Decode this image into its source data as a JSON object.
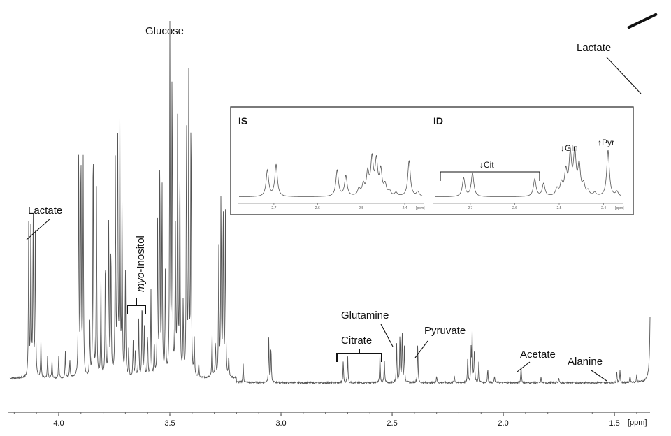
{
  "chart_data": {
    "type": "line",
    "x_unit": "[ppm]",
    "xlim": [
      4.22,
      1.34
    ],
    "x_reversed": true,
    "x_ticks": [
      4.0,
      3.5,
      3.0,
      2.5,
      2.0,
      1.5
    ],
    "x_tick_labels": [
      "4.0",
      "3.5",
      "3.0",
      "2.5",
      "2.0",
      "1.5"
    ],
    "ylim": [
      0,
      100
    ],
    "baseline": 2,
    "peaks": [
      {
        "x": 4.135,
        "h": 42
      },
      {
        "x": 4.125,
        "h": 47
      },
      {
        "x": 4.115,
        "h": 45
      },
      {
        "x": 4.105,
        "h": 40
      },
      {
        "x": 4.08,
        "h": 10
      },
      {
        "x": 4.05,
        "h": 6
      },
      {
        "x": 4.03,
        "h": 5
      },
      {
        "x": 4.0,
        "h": 6
      },
      {
        "x": 3.97,
        "h": 7
      },
      {
        "x": 3.95,
        "h": 5
      },
      {
        "x": 3.91,
        "h": 62
      },
      {
        "x": 3.9,
        "h": 66
      },
      {
        "x": 3.89,
        "h": 60
      },
      {
        "x": 3.86,
        "h": 15
      },
      {
        "x": 3.845,
        "h": 70
      },
      {
        "x": 3.83,
        "h": 52
      },
      {
        "x": 3.81,
        "h": 28
      },
      {
        "x": 3.79,
        "h": 35
      },
      {
        "x": 3.775,
        "h": 42
      },
      {
        "x": 3.765,
        "h": 38
      },
      {
        "x": 3.745,
        "h": 60
      },
      {
        "x": 3.735,
        "h": 78
      },
      {
        "x": 3.725,
        "h": 72
      },
      {
        "x": 3.715,
        "h": 50
      },
      {
        "x": 3.7,
        "h": 30
      },
      {
        "x": 3.685,
        "h": 8
      },
      {
        "x": 3.665,
        "h": 10
      },
      {
        "x": 3.655,
        "h": 8
      },
      {
        "x": 3.64,
        "h": 16
      },
      {
        "x": 3.625,
        "h": 22
      },
      {
        "x": 3.615,
        "h": 14
      },
      {
        "x": 3.6,
        "h": 12
      },
      {
        "x": 3.585,
        "h": 24
      },
      {
        "x": 3.57,
        "h": 10
      },
      {
        "x": 3.555,
        "h": 42
      },
      {
        "x": 3.545,
        "h": 62
      },
      {
        "x": 3.535,
        "h": 55
      },
      {
        "x": 3.52,
        "h": 30
      },
      {
        "x": 3.5,
        "h": 96
      },
      {
        "x": 3.49,
        "h": 88
      },
      {
        "x": 3.475,
        "h": 40
      },
      {
        "x": 3.465,
        "h": 74
      },
      {
        "x": 3.455,
        "h": 60
      },
      {
        "x": 3.44,
        "h": 20
      },
      {
        "x": 3.425,
        "h": 72
      },
      {
        "x": 3.415,
        "h": 82
      },
      {
        "x": 3.405,
        "h": 76
      },
      {
        "x": 3.39,
        "h": 10
      },
      {
        "x": 3.37,
        "h": 4
      },
      {
        "x": 3.31,
        "h": 12
      },
      {
        "x": 3.295,
        "h": 10
      },
      {
        "x": 3.28,
        "h": 35
      },
      {
        "x": 3.27,
        "h": 52
      },
      {
        "x": 3.26,
        "h": 48
      },
      {
        "x": 3.25,
        "h": 45
      },
      {
        "x": 3.235,
        "h": 6
      },
      {
        "x": 3.17,
        "h": 5
      },
      {
        "x": 3.055,
        "h": 12
      },
      {
        "x": 3.045,
        "h": 10
      },
      {
        "x": 2.72,
        "h": 6
      },
      {
        "x": 2.7,
        "h": 7.5
      },
      {
        "x": 2.555,
        "h": 8
      },
      {
        "x": 2.535,
        "h": 6
      },
      {
        "x": 2.48,
        "h": 11
      },
      {
        "x": 2.465,
        "h": 14
      },
      {
        "x": 2.455,
        "h": 14
      },
      {
        "x": 2.445,
        "h": 10
      },
      {
        "x": 2.385,
        "h": 11
      },
      {
        "x": 2.3,
        "h": 2
      },
      {
        "x": 2.22,
        "h": 2
      },
      {
        "x": 2.16,
        "h": 7
      },
      {
        "x": 2.145,
        "h": 9
      },
      {
        "x": 2.14,
        "h": 14
      },
      {
        "x": 2.13,
        "h": 10
      },
      {
        "x": 2.11,
        "h": 6
      },
      {
        "x": 2.07,
        "h": 4
      },
      {
        "x": 2.04,
        "h": 2
      },
      {
        "x": 1.92,
        "h": 5
      },
      {
        "x": 1.83,
        "h": 1.5
      },
      {
        "x": 1.75,
        "h": 1.5
      },
      {
        "x": 1.49,
        "h": 3.5
      },
      {
        "x": 1.475,
        "h": 3.5
      },
      {
        "x": 1.43,
        "h": 2
      },
      {
        "x": 1.4,
        "h": 2
      },
      {
        "x": 1.335,
        "h": 175
      },
      {
        "x": 1.325,
        "h": 175
      }
    ],
    "annotations": [
      {
        "label": "Glucose"
      },
      {
        "label": "Lactate"
      },
      {
        "label": "Lactate"
      },
      {
        "label_italic": "myo",
        "label_rest": "-Inositol"
      },
      {
        "label": "Citrate"
      },
      {
        "label": "Glutamine"
      },
      {
        "label": "Pyruvate"
      },
      {
        "label": "Acetate"
      },
      {
        "label": "Alanine"
      }
    ],
    "inset": {
      "panels": [
        {
          "title": "IS",
          "xlim": [
            2.78,
            2.36
          ],
          "x_ticks": [
            2.7,
            2.6,
            2.5,
            2.4
          ],
          "x_tick_labels": [
            "2.7",
            "2.6",
            "2.5",
            "2.4"
          ],
          "unit": "[ppm]",
          "peaks": [
            {
              "x": 2.715,
              "h": 45
            },
            {
              "x": 2.695,
              "h": 55
            },
            {
              "x": 2.555,
              "h": 45
            },
            {
              "x": 2.535,
              "h": 35
            },
            {
              "x": 2.505,
              "h": 12
            },
            {
              "x": 2.495,
              "h": 18
            },
            {
              "x": 2.485,
              "h": 38
            },
            {
              "x": 2.475,
              "h": 62
            },
            {
              "x": 2.465,
              "h": 58
            },
            {
              "x": 2.455,
              "h": 42
            },
            {
              "x": 2.445,
              "h": 18
            },
            {
              "x": 2.435,
              "h": 8
            },
            {
              "x": 2.42,
              "h": 6
            },
            {
              "x": 2.39,
              "h": 62
            },
            {
              "x": 2.37,
              "h": 8
            }
          ],
          "labels": []
        },
        {
          "title": "ID",
          "xlim": [
            2.78,
            2.36
          ],
          "x_ticks": [
            2.7,
            2.6,
            2.5,
            2.4
          ],
          "x_tick_labels": [
            "2.7",
            "2.6",
            "2.5",
            "2.4"
          ],
          "unit": "[ppm]",
          "peaks": [
            {
              "x": 2.715,
              "h": 32
            },
            {
              "x": 2.695,
              "h": 40
            },
            {
              "x": 2.555,
              "h": 30
            },
            {
              "x": 2.535,
              "h": 22
            },
            {
              "x": 2.505,
              "h": 12
            },
            {
              "x": 2.495,
              "h": 20
            },
            {
              "x": 2.485,
              "h": 40
            },
            {
              "x": 2.475,
              "h": 68
            },
            {
              "x": 2.465,
              "h": 72
            },
            {
              "x": 2.455,
              "h": 50
            },
            {
              "x": 2.445,
              "h": 18
            },
            {
              "x": 2.435,
              "h": 8
            },
            {
              "x": 2.42,
              "h": 6
            },
            {
              "x": 2.39,
              "h": 80
            },
            {
              "x": 2.37,
              "h": 8
            }
          ],
          "labels": [
            "↓Cit",
            "↓Gln",
            "↑Pyr"
          ]
        }
      ]
    }
  }
}
